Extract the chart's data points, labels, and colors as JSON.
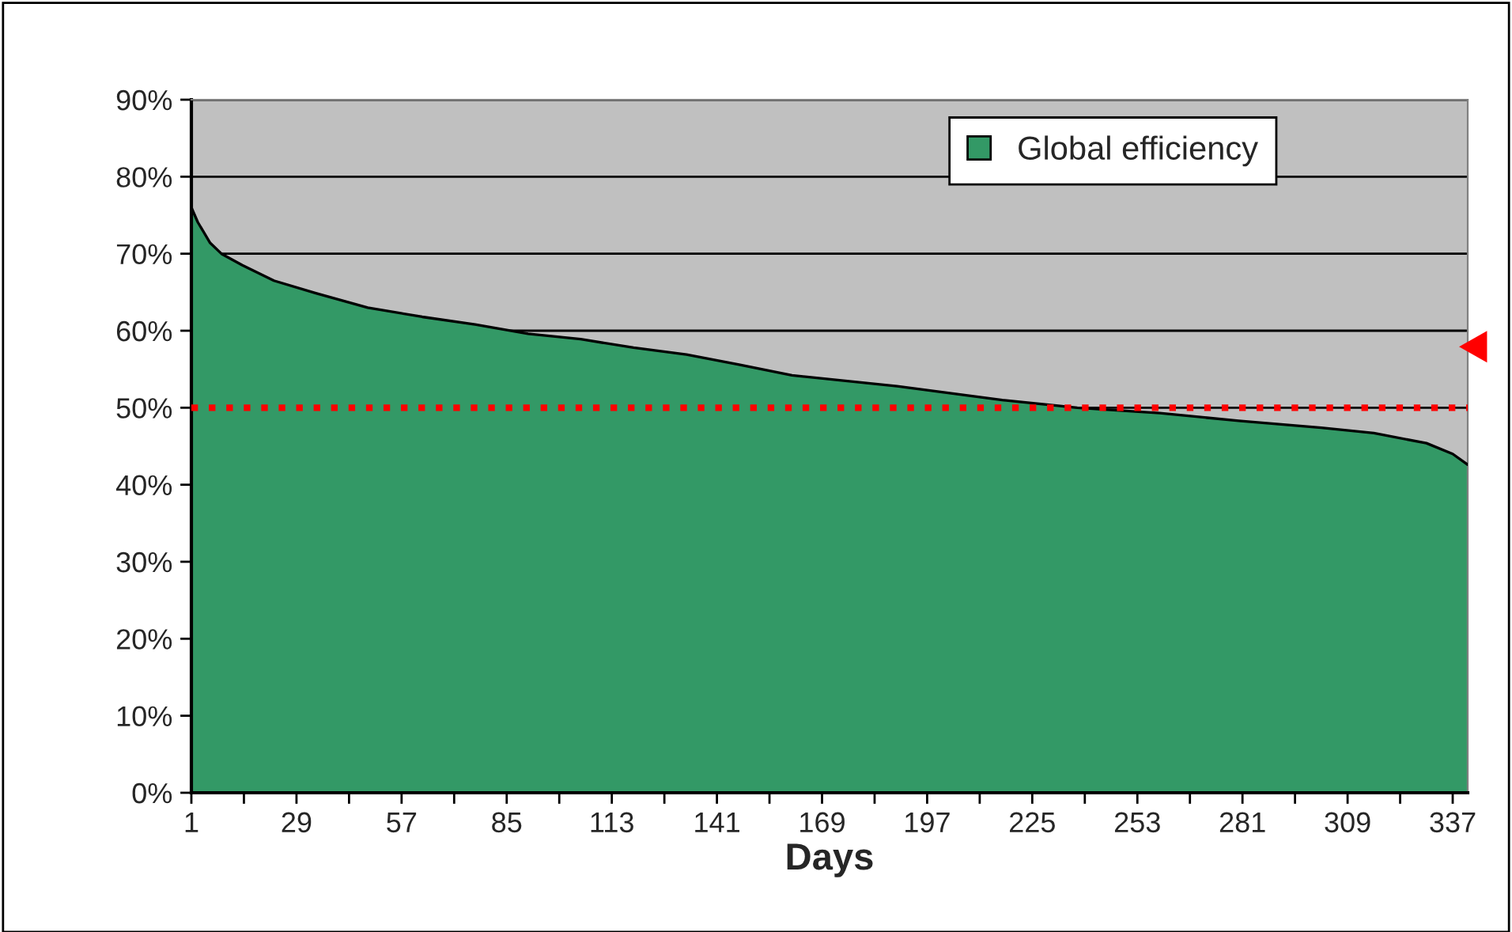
{
  "chart_data": {
    "type": "area",
    "xlabel": "Days",
    "x": [
      1,
      2.7,
      6,
      9,
      14.6,
      23,
      34,
      48,
      62.5,
      76.6,
      90.7,
      104.7,
      118.8,
      132.9,
      146.9,
      161,
      189,
      217,
      237,
      259,
      280,
      302,
      316,
      330,
      337,
      341
    ],
    "series": [
      {
        "name": "Global efficiency",
        "color": "#339966",
        "values": [
          76.0,
          74.1,
          71.4,
          70.0,
          68.5,
          66.5,
          64.9,
          63.0,
          61.8,
          60.8,
          59.6,
          58.9,
          57.8,
          56.9,
          55.6,
          54.2,
          52.8,
          51.0,
          50.0,
          49.3,
          48.3,
          47.4,
          46.7,
          45.4,
          44.0,
          42.6
        ]
      }
    ],
    "xlim": [
      1,
      341
    ],
    "xticks": [
      1,
      {
        "value": 15,
        "label": null
      },
      29,
      {
        "value": 43,
        "label": null
      },
      57,
      {
        "value": 71,
        "label": null
      },
      85,
      {
        "value": 99,
        "label": null
      },
      113,
      {
        "value": 127,
        "label": null
      },
      141,
      {
        "value": 155,
        "label": null
      },
      169,
      {
        "value": 183,
        "label": null
      },
      197,
      {
        "value": 211,
        "label": null
      },
      225,
      {
        "value": 239,
        "label": null
      },
      253,
      {
        "value": 267,
        "label": null
      },
      281,
      {
        "value": 295,
        "label": null
      },
      309,
      {
        "value": 323,
        "label": null
      },
      337
    ],
    "ylim": [
      0,
      90
    ],
    "yticks": [
      {
        "value": 0,
        "label": "0%"
      },
      {
        "value": 10,
        "label": "10%"
      },
      {
        "value": 20,
        "label": "20%"
      },
      {
        "value": 30,
        "label": "30%"
      },
      {
        "value": 40,
        "label": "40%"
      },
      {
        "value": 50,
        "label": "50%"
      },
      {
        "value": 60,
        "label": "60%"
      },
      {
        "value": 70,
        "label": "70%"
      },
      {
        "value": 80,
        "label": "80%"
      },
      {
        "value": 90,
        "label": "90%"
      }
    ],
    "ref_lines": [
      {
        "axis": "y",
        "value": 50,
        "color": "#ff0000",
        "line_style": "dotted"
      }
    ],
    "grid": "y",
    "legend": "top right"
  }
}
